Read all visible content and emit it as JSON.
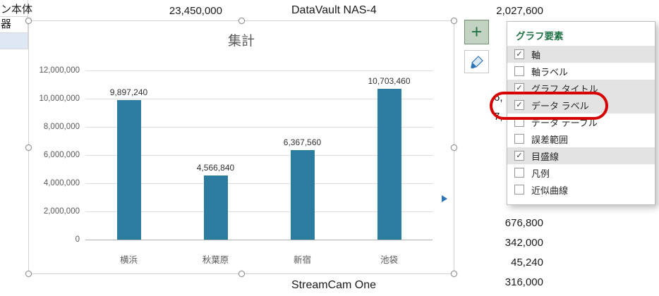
{
  "background": {
    "fragment_top": "ン本体",
    "fragment_mid": "器",
    "value_top_left": "23,450,000",
    "product_top": "DataVault NAS-4",
    "value_top_right": "2,027,600",
    "partial_value_1": "6,",
    "partial_value_2": "7,",
    "right_values": [
      "676,800",
      "342,000",
      "45,240",
      "316,000"
    ],
    "product_bottom": "StreamCam One"
  },
  "chart": {
    "title": "集計",
    "chart_data": {
      "type": "bar",
      "title": "集計",
      "categories": [
        "横浜",
        "秋葉原",
        "新宿",
        "池袋"
      ],
      "values": [
        9897240,
        4566840,
        6367560,
        10703460
      ],
      "value_labels": [
        "9,897,240",
        "4,566,840",
        "6,367,560",
        "10,703,460"
      ],
      "ylim": [
        0,
        12000000
      ],
      "ytick_labels": [
        "12,000,000",
        "10,000,000",
        "8,000,000",
        "6,000,000",
        "4,000,000",
        "2,000,000",
        "0"
      ],
      "grid": true,
      "legend": false,
      "bar_color": "#2B7C9E"
    }
  },
  "side_buttons": {
    "elements_glyph": "+"
  },
  "panel": {
    "title": "グラフ要素",
    "items": [
      {
        "label": "軸",
        "checked": true,
        "highlighted": true
      },
      {
        "label": "軸ラベル",
        "checked": false,
        "highlighted": false
      },
      {
        "label": "グラフ タイトル",
        "checked": true,
        "highlighted": true
      },
      {
        "label": "データ ラベル",
        "checked": true,
        "highlighted": true,
        "annotated": true
      },
      {
        "label": "データ テーブル",
        "checked": false,
        "highlighted": false
      },
      {
        "label": "誤差範囲",
        "checked": false,
        "highlighted": false
      },
      {
        "label": "目盛線",
        "checked": true,
        "highlighted": true
      },
      {
        "label": "凡例",
        "checked": false,
        "highlighted": false
      },
      {
        "label": "近似曲線",
        "checked": false,
        "highlighted": false
      }
    ]
  },
  "colors": {
    "bar": "#2B7C9E",
    "excel_green": "#217346",
    "annotation_red": "#D60000",
    "row_highlight": "#E3E3E3"
  }
}
